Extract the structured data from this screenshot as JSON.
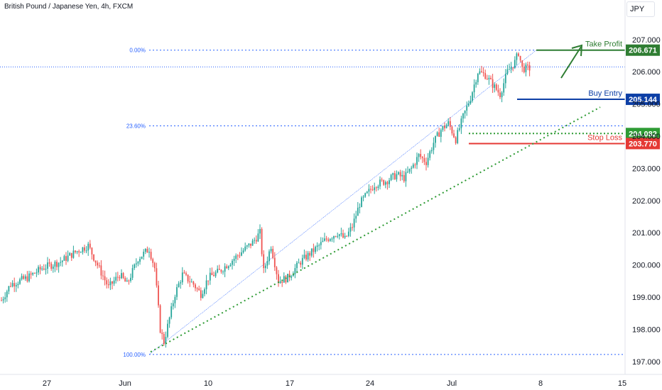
{
  "header": {
    "title": "British Pound / Japanese Yen, 4h, FXCM",
    "currency": "JPY"
  },
  "colors": {
    "up": "#26a69a",
    "down": "#ef5350",
    "fib": "#2962ff",
    "take_profit": "#2e7d32",
    "buy_entry": "#0d3fa6",
    "stop_loss": "#e53935",
    "support": "#2e9b34"
  },
  "chart_data": {
    "type": "candlestick",
    "ylim": [
      196.6,
      207.7
    ],
    "y_ticks": [
      "197.000",
      "198.000",
      "199.000",
      "200.000",
      "201.000",
      "202.000",
      "203.000",
      "204.000",
      "205.000",
      "206.000",
      "207.000"
    ],
    "x_ticks": [
      "27",
      "Jun",
      "10",
      "17",
      "24",
      "Jul",
      "8",
      "15"
    ],
    "fib_levels": [
      {
        "label": "0.00%",
        "value": 206.671
      },
      {
        "label": "23.60%",
        "value": 204.32
      },
      {
        "label": "100.00%",
        "value": 197.22
      }
    ],
    "price_lines": [
      {
        "key": "take_profit",
        "label": "Take Profit",
        "value": 206.671,
        "value_label": "206.671"
      },
      {
        "key": "buy_entry",
        "label": "Buy Entry",
        "value": 205.144,
        "value_label": "205.144"
      },
      {
        "key": "support",
        "label": "",
        "value": 204.082,
        "value_label": "204.082"
      },
      {
        "key": "stop_loss",
        "label": "Stop Loss",
        "value": 203.77,
        "value_label": "203.770"
      }
    ],
    "series_anchors": [
      [
        0,
        198.9
      ],
      [
        5,
        199.4
      ],
      [
        14,
        199.6
      ],
      [
        22,
        199.9
      ],
      [
        32,
        200.1
      ],
      [
        40,
        200.4
      ],
      [
        47,
        200.6
      ],
      [
        52,
        200.0
      ],
      [
        58,
        199.3
      ],
      [
        64,
        199.7
      ],
      [
        68,
        199.4
      ],
      [
        74,
        200.2
      ],
      [
        80,
        200.5
      ],
      [
        83,
        199.9
      ],
      [
        86,
        198.0
      ],
      [
        88,
        197.6
      ],
      [
        94,
        199.1
      ],
      [
        98,
        199.7
      ],
      [
        104,
        199.4
      ],
      [
        108,
        199.1
      ],
      [
        112,
        199.6
      ],
      [
        118,
        199.8
      ],
      [
        124,
        200.1
      ],
      [
        128,
        200.3
      ],
      [
        132,
        200.5
      ],
      [
        136,
        200.7
      ],
      [
        140,
        201.0
      ],
      [
        142,
        199.8
      ],
      [
        146,
        200.6
      ],
      [
        150,
        199.5
      ],
      [
        155,
        199.6
      ],
      [
        162,
        200.1
      ],
      [
        170,
        200.5
      ],
      [
        176,
        200.8
      ],
      [
        182,
        201.0
      ],
      [
        186,
        200.8
      ],
      [
        190,
        201.2
      ],
      [
        194,
        201.9
      ],
      [
        198,
        202.2
      ],
      [
        202,
        202.5
      ],
      [
        208,
        202.6
      ],
      [
        214,
        202.8
      ],
      [
        218,
        202.7
      ],
      [
        222,
        203.0
      ],
      [
        226,
        203.4
      ],
      [
        230,
        203.2
      ],
      [
        234,
        203.8
      ],
      [
        238,
        204.2
      ],
      [
        242,
        204.4
      ],
      [
        246,
        203.9
      ],
      [
        250,
        204.6
      ],
      [
        254,
        205.2
      ],
      [
        258,
        206.0
      ],
      [
        262,
        205.9
      ],
      [
        266,
        205.6
      ],
      [
        270,
        205.3
      ],
      [
        274,
        206.0
      ],
      [
        278,
        206.3
      ],
      [
        280,
        206.6
      ],
      [
        282,
        206.1
      ],
      [
        286,
        206.1
      ]
    ]
  }
}
